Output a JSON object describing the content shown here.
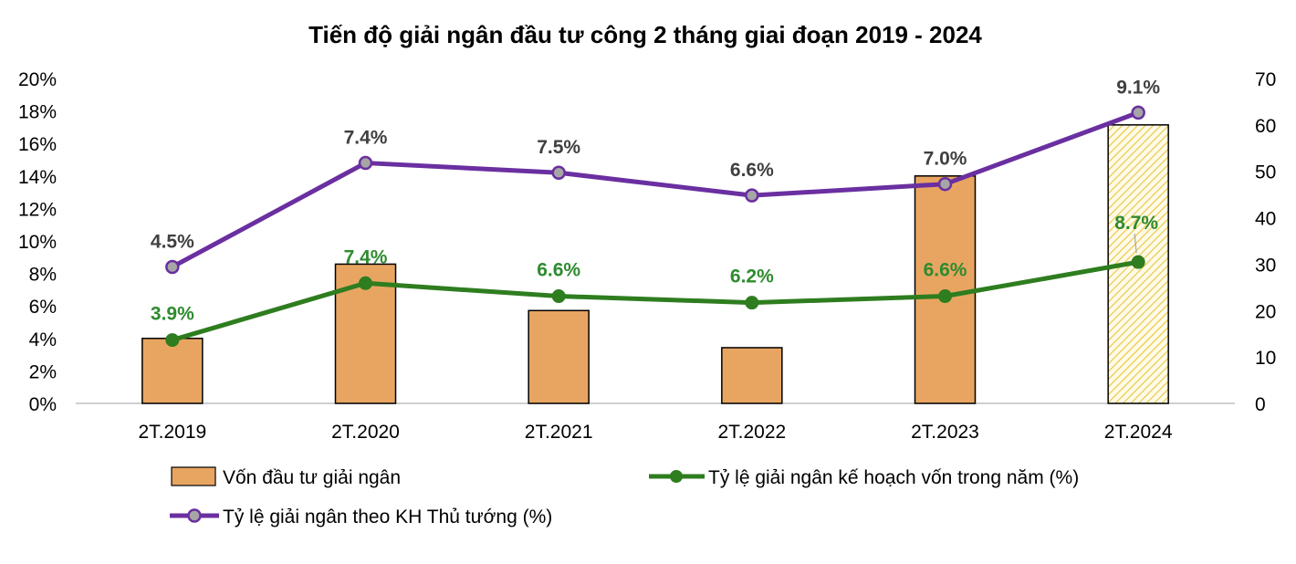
{
  "chart_data": {
    "type": "bar",
    "title": "Tiến độ giải ngân đầu tư công 2 tháng giai đoạn 2019 - 2024",
    "categories": [
      "2T.2019",
      "2T.2020",
      "2T.2021",
      "2T.2022",
      "2T.2023",
      "2T.2024"
    ],
    "y_left": {
      "ylim": [
        0,
        20
      ],
      "ticks": [
        "0%",
        "2%",
        "4%",
        "6%",
        "8%",
        "10%",
        "12%",
        "14%",
        "16%",
        "18%",
        "20%"
      ]
    },
    "y_right": {
      "ylim": [
        0,
        70
      ],
      "ticks": [
        "0",
        "10",
        "20",
        "30",
        "40",
        "50",
        "60",
        "70"
      ]
    },
    "series": [
      {
        "name": "Vốn đầu tư giải ngân",
        "type": "bar",
        "axis": "right",
        "values": [
          14,
          30,
          20,
          12,
          49,
          60
        ],
        "color": "#e8a562",
        "hatched_last": true,
        "hatch_color": "#e8c84a"
      },
      {
        "name": "Tỷ lệ giải ngân kế hoạch vốn trong năm (%)",
        "type": "line",
        "axis": "left",
        "values": [
          3.9,
          7.4,
          6.6,
          6.2,
          6.6,
          8.7
        ],
        "labels": [
          "3.9%",
          "7.4%",
          "6.6%",
          "6.2%",
          "6.6%",
          "8.7%"
        ],
        "color": "#2e7d1f"
      },
      {
        "name": "Tỷ lệ giải ngân theo KH Thủ tướng (%)",
        "type": "line",
        "axis": "left",
        "values": [
          8.4,
          14.8,
          14.2,
          12.8,
          13.5,
          17.9
        ],
        "labels": [
          "4.5%",
          "7.4%",
          "7.5%",
          "6.6%",
          "7.0%",
          "9.1%"
        ],
        "color": "#6a2fa0"
      }
    ],
    "legend_position": "bottom",
    "grid": false
  }
}
